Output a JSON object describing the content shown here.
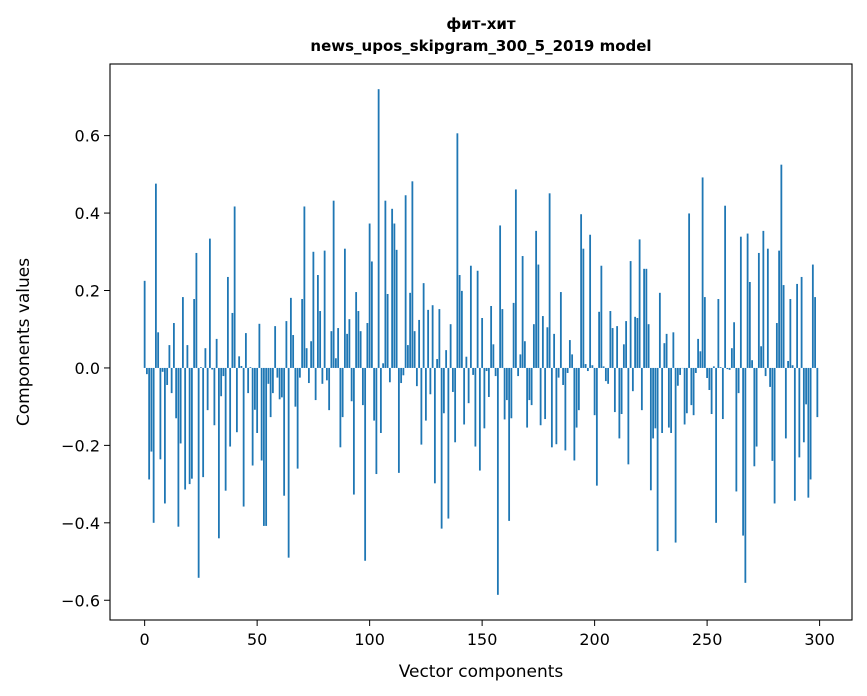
{
  "chart_data": {
    "type": "bar",
    "title": "фит-хит",
    "subtitle": "news_upos_skipgram_300_5_2019 model",
    "xlabel": "Vector components",
    "ylabel": "Components values",
    "xlim": [
      -15.4,
      314.4
    ],
    "ylim": [
      -0.651,
      0.785
    ],
    "xticks": [
      0,
      50,
      100,
      150,
      200,
      250,
      300
    ],
    "xtick_labels": [
      "0",
      "50",
      "100",
      "150",
      "200",
      "250",
      "300"
    ],
    "yticks": [
      -0.6,
      -0.4,
      -0.2,
      0.0,
      0.2,
      0.4,
      0.6
    ],
    "ytick_labels": [
      "−0.6",
      "−0.4",
      "−0.2",
      "0.0",
      "0.2",
      "0.4",
      "0.6"
    ],
    "grid": false,
    "bar_color": "#1f77b4",
    "values": [
      0.225,
      -0.016,
      -0.288,
      -0.216,
      -0.4,
      0.476,
      0.092,
      -0.236,
      -0.01,
      -0.35,
      -0.044,
      0.059,
      -0.065,
      0.116,
      -0.13,
      -0.41,
      -0.195,
      0.183,
      -0.314,
      0.059,
      -0.3,
      -0.286,
      0.178,
      0.297,
      -0.542,
      0.002,
      -0.282,
      0.051,
      -0.109,
      0.334,
      -0.004,
      -0.148,
      0.075,
      -0.44,
      -0.073,
      -0.021,
      -0.317,
      0.235,
      -0.203,
      0.142,
      0.417,
      -0.166,
      0.03,
      0.005,
      -0.358,
      0.09,
      -0.065,
      0.002,
      -0.252,
      -0.108,
      -0.168,
      0.114,
      -0.239,
      -0.408,
      -0.408,
      -0.041,
      -0.127,
      -0.065,
      0.108,
      -0.025,
      -0.081,
      -0.076,
      -0.33,
      0.121,
      -0.49,
      0.181,
      0.085,
      -0.1,
      -0.26,
      -0.025,
      0.178,
      0.417,
      0.051,
      -0.039,
      0.069,
      0.3,
      -0.083,
      0.24,
      0.147,
      -0.041,
      0.303,
      -0.032,
      -0.109,
      0.095,
      0.432,
      0.025,
      0.103,
      -0.205,
      -0.127,
      0.308,
      0.088,
      0.126,
      -0.086,
      -0.327,
      0.196,
      0.147,
      0.095,
      -0.096,
      -0.498,
      0.116,
      0.373,
      0.275,
      -0.136,
      -0.274,
      0.72,
      -0.168,
      0.012,
      0.432,
      0.191,
      -0.037,
      0.411,
      0.373,
      0.305,
      -0.271,
      -0.039,
      -0.019,
      0.446,
      0.059,
      0.194,
      0.482,
      0.095,
      -0.047,
      0.124,
      -0.198,
      0.219,
      -0.136,
      0.15,
      -0.068,
      0.162,
      -0.298,
      0.023,
      0.152,
      -0.415,
      -0.117,
      0.046,
      -0.389,
      0.113,
      -0.062,
      -0.192,
      0.606,
      0.24,
      0.199,
      -0.146,
      0.029,
      -0.091,
      0.264,
      -0.018,
      -0.203,
      0.251,
      -0.265,
      0.129,
      -0.156,
      -0.008,
      -0.075,
      0.16,
      0.061,
      -0.021,
      -0.586,
      0.368,
      0.152,
      -0.133,
      -0.083,
      -0.395,
      -0.13,
      0.168,
      0.461,
      -0.021,
      0.035,
      0.289,
      0.069,
      -0.154,
      -0.083,
      -0.096,
      0.113,
      0.354,
      0.267,
      -0.148,
      0.134,
      -0.132,
      0.105,
      0.451,
      -0.205,
      0.088,
      -0.197,
      -0.025,
      0.196,
      -0.044,
      -0.213,
      -0.013,
      0.072,
      0.035,
      -0.239,
      -0.154,
      -0.109,
      0.397,
      0.308,
      0.01,
      -0.008,
      0.344,
      0.007,
      -0.122,
      -0.304,
      0.145,
      0.264,
      0.004,
      -0.034,
      -0.041,
      0.147,
      0.103,
      -0.114,
      0.108,
      -0.182,
      -0.119,
      0.061,
      0.121,
      -0.249,
      0.276,
      -0.06,
      0.132,
      0.129,
      0.332,
      -0.109,
      0.256,
      0.256,
      0.113,
      -0.316,
      -0.182,
      -0.156,
      -0.473,
      0.194,
      -0.168,
      0.064,
      0.088,
      -0.154,
      -0.168,
      0.092,
      -0.451,
      -0.046,
      -0.018,
      0.0,
      -0.146,
      -0.117,
      0.399,
      -0.096,
      -0.122,
      -0.013,
      0.075,
      0.043,
      0.492,
      0.183,
      -0.026,
      -0.057,
      -0.119,
      0.004,
      -0.4,
      0.178,
      0.002,
      -0.132,
      0.419,
      -0.003,
      -0.005,
      0.051,
      0.118,
      -0.319,
      -0.065,
      0.339,
      -0.433,
      -0.555,
      0.347,
      0.222,
      0.02,
      -0.254,
      -0.203,
      0.297,
      0.056,
      0.354,
      -0.021,
      0.308,
      -0.049,
      -0.24,
      -0.35,
      0.116,
      0.303,
      0.525,
      0.214,
      -0.182,
      0.018,
      0.178,
      0.007,
      -0.343,
      0.217,
      -0.231,
      0.235,
      -0.192,
      -0.094,
      -0.335,
      -0.288,
      0.267,
      0.183,
      -0.127
    ]
  }
}
